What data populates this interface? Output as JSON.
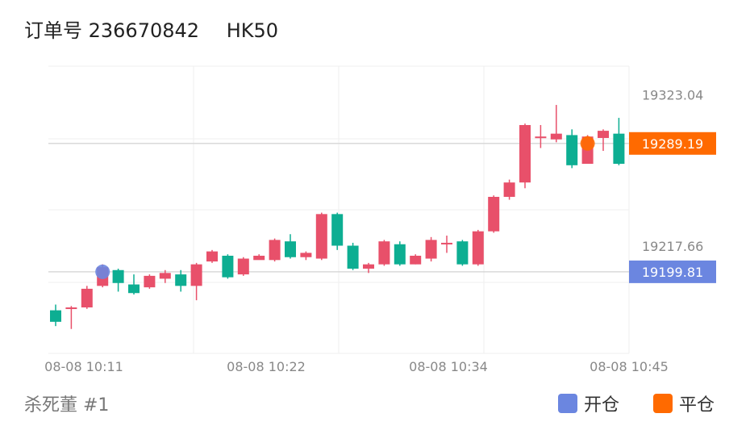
{
  "header": {
    "order_label": "订单号 236670842",
    "symbol": "HK50"
  },
  "footer": {
    "strategy_label": "杀死董 #1"
  },
  "legend": [
    {
      "label": "开仓",
      "color": "#6B86E0"
    },
    {
      "label": "平仓",
      "color": "#FF6A00"
    }
  ],
  "colors": {
    "up": "#E8506A",
    "down": "#0DAE92",
    "grid": "#EFEFEF",
    "marker_line": "#D9D9D9"
  },
  "chart_data": {
    "type": "candlestick",
    "title": "",
    "xlabel": "",
    "ylabel": "",
    "x_tick_labels": [
      "08-08 10:11",
      "08-08 10:22",
      "08-08 10:34",
      "08-08 10:45"
    ],
    "y_tick_labels": [
      19323.04,
      19217.66
    ],
    "ylim": [
      19143,
      19343
    ],
    "grid": true,
    "candles": [
      [
        19173,
        19165,
        19162,
        19177
      ],
      [
        19175,
        19175,
        19160,
        19176
      ],
      [
        19175,
        19188,
        19174,
        19190
      ],
      [
        19190,
        19203,
        19189,
        19205
      ],
      [
        19201,
        19192,
        19186,
        19202
      ],
      [
        19191,
        19185,
        19184,
        19198
      ],
      [
        19189,
        19197,
        19188,
        19198
      ],
      [
        19195,
        19199,
        19192,
        19201
      ],
      [
        19198,
        19190,
        19186,
        19201
      ],
      [
        19190,
        19205,
        19180,
        19206
      ],
      [
        19207,
        19214,
        19206,
        19215
      ],
      [
        19211,
        19196,
        19195,
        19212
      ],
      [
        19198,
        19209,
        19197,
        19210
      ],
      [
        19208,
        19211,
        19209,
        19212
      ],
      [
        19208,
        19222,
        19207,
        19223
      ],
      [
        19221,
        19210,
        19209,
        19226
      ],
      [
        19210,
        19213,
        19208,
        19214
      ],
      [
        19209,
        19240,
        19208,
        19241
      ],
      [
        19240,
        19218,
        19215,
        19241
      ],
      [
        19218,
        19202,
        19201,
        19220
      ],
      [
        19202,
        19205,
        19199,
        19206
      ],
      [
        19205,
        19221,
        19204,
        19222
      ],
      [
        19219,
        19205,
        19204,
        19221
      ],
      [
        19205,
        19211,
        19205,
        19212
      ],
      [
        19209,
        19222,
        19207,
        19224
      ],
      [
        19220,
        19220,
        19213,
        19225
      ],
      [
        19221,
        19205,
        19204,
        19222
      ],
      [
        19205,
        19228,
        19204,
        19229
      ],
      [
        19228,
        19252,
        19227,
        19253
      ],
      [
        19252,
        19262,
        19250,
        19264
      ],
      [
        19262,
        19302,
        19258,
        19303
      ],
      [
        19294,
        19294,
        19286,
        19302
      ],
      [
        19292,
        19296,
        19290,
        19316
      ],
      [
        19295,
        19274,
        19272,
        19299
      ],
      [
        19275,
        19294,
        19276,
        19295
      ],
      [
        19293,
        19298,
        19284,
        19299
      ],
      [
        19296,
        19275,
        19274,
        19307
      ]
    ],
    "annotations": [
      {
        "kind": "open",
        "candle_index": 3,
        "price": 19199.81,
        "label": "19199.81",
        "color": "#6B86E0"
      },
      {
        "kind": "close",
        "candle_index": 34,
        "price": 19289.19,
        "label": "19289.19",
        "color": "#FF6A00"
      }
    ]
  }
}
